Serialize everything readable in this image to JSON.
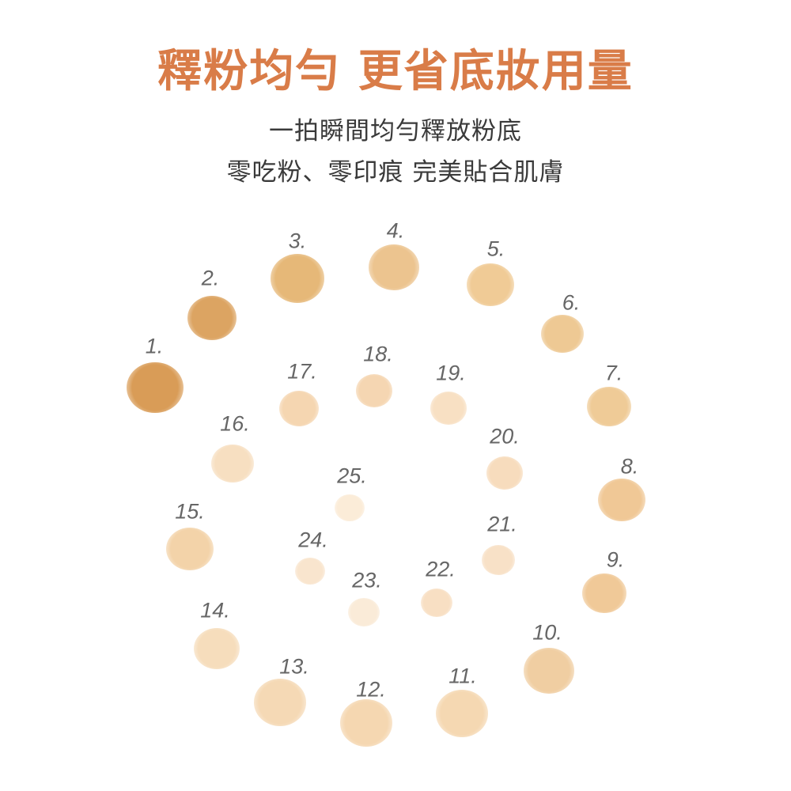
{
  "title": "釋粉均勻 更省底妝用量",
  "subtitle_lines": [
    "一拍瞬間均勻釋放粉底",
    "零吃粉、零印痕 完美貼合肌膚"
  ],
  "colors": {
    "title": "#d97c48",
    "text": "#3a3a3a",
    "label": "#666666"
  },
  "swatches": [
    {
      "label": "1.",
      "color": "#d99c57"
    },
    {
      "label": "2.",
      "color": "#dca462"
    },
    {
      "label": "3.",
      "color": "#e6b878"
    },
    {
      "label": "4.",
      "color": "#ecc48f"
    },
    {
      "label": "5.",
      "color": "#f0cb96"
    },
    {
      "label": "6.",
      "color": "#eec994"
    },
    {
      "label": "7.",
      "color": "#efcb97"
    },
    {
      "label": "8.",
      "color": "#f0c896"
    },
    {
      "label": "9.",
      "color": "#f0c998"
    },
    {
      "label": "10.",
      "color": "#f0cea2"
    },
    {
      "label": "11.",
      "color": "#f5d8b2"
    },
    {
      "label": "12.",
      "color": "#f5d7b1"
    },
    {
      "label": "13.",
      "color": "#f5d9b5"
    },
    {
      "label": "14.",
      "color": "#f6ddbc"
    },
    {
      "label": "15.",
      "color": "#f3d3a9"
    },
    {
      "label": "16.",
      "color": "#f7dfc1"
    },
    {
      "label": "17.",
      "color": "#f5d6b1"
    },
    {
      "label": "18.",
      "color": "#f5d6b2"
    },
    {
      "label": "19.",
      "color": "#f8e0c3"
    },
    {
      "label": "20.",
      "color": "#f7dcbd"
    },
    {
      "label": "21.",
      "color": "#f8e1c7"
    },
    {
      "label": "22.",
      "color": "#f8dfc3"
    },
    {
      "label": "23.",
      "color": "#faebd8"
    },
    {
      "label": "24.",
      "color": "#f9e5ce"
    },
    {
      "label": "25.",
      "color": "#fbecd8"
    }
  ]
}
